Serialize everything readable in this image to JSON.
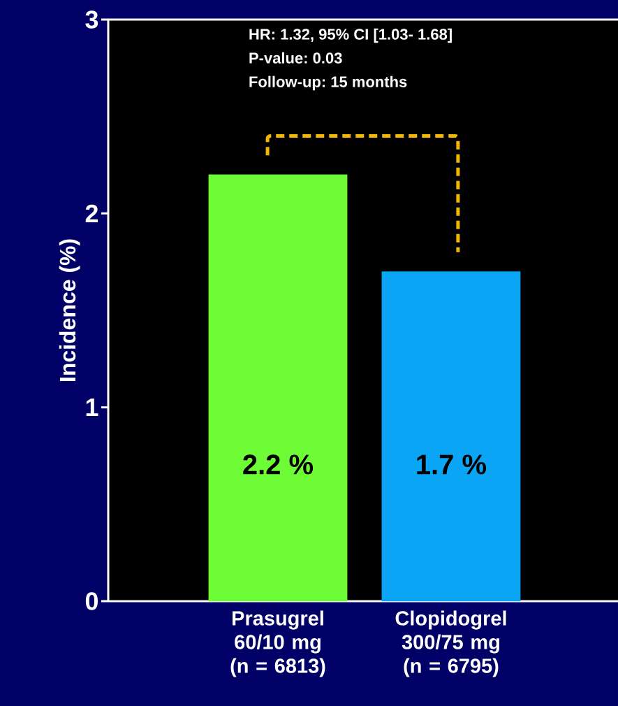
{
  "chart_data": {
    "type": "bar",
    "ylabel": "Incidence (%)",
    "categories": [
      "Prasugrel 60/10 mg (n = 6813)",
      "Clopidogrel 300/75 mg (n = 6795)"
    ],
    "values": [
      2.2,
      1.7
    ],
    "colors": [
      "#6dfc36",
      "#0aa5f5"
    ],
    "value_labels": [
      "2.2 %",
      "1.7 %"
    ],
    "ylim": [
      0,
      3
    ],
    "yticks": [
      0,
      1,
      2,
      3
    ],
    "annotations": [
      "HR: 1.32, 95% CI [1.03- 1.68]",
      "P-value: 0.03",
      "Follow-up: 15 months"
    ]
  }
}
